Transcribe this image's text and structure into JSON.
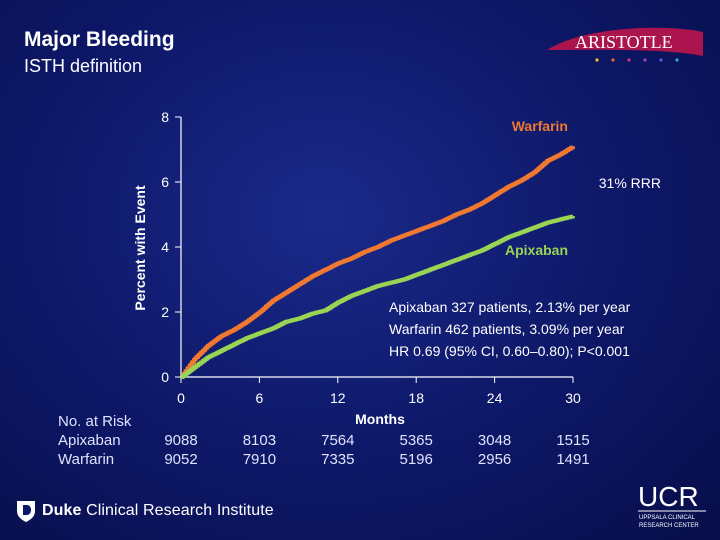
{
  "header": {
    "title": "Major Bleeding",
    "subtitle": "ISTH definition",
    "logo_text": "ARISTOTLE"
  },
  "chart_data": {
    "type": "line",
    "ylabel": "Percent with Event",
    "xlabel": "Months",
    "xlim": [
      0,
      30
    ],
    "ylim": [
      0,
      8
    ],
    "xticks": [
      0,
      6,
      12,
      18,
      24,
      30
    ],
    "yticks": [
      0,
      2,
      4,
      6,
      8
    ],
    "series": [
      {
        "name": "Warfarin",
        "color": "#f07830",
        "x": [
          0,
          1,
          2,
          3,
          4,
          5,
          6,
          7,
          8,
          9,
          10,
          11,
          12,
          13,
          14,
          15,
          16,
          17,
          18,
          19,
          20,
          21,
          22,
          23,
          24,
          25,
          26,
          27,
          28,
          29,
          30
        ],
        "y": [
          0,
          0.55,
          0.95,
          1.25,
          1.45,
          1.7,
          2.0,
          2.35,
          2.6,
          2.85,
          3.1,
          3.3,
          3.5,
          3.65,
          3.85,
          4.0,
          4.2,
          4.35,
          4.5,
          4.65,
          4.8,
          5.0,
          5.15,
          5.35,
          5.6,
          5.85,
          6.05,
          6.3,
          6.65,
          6.85,
          7.1
        ]
      },
      {
        "name": "Apixaban",
        "color": "#99d454",
        "x": [
          0,
          1,
          2,
          3,
          4,
          5,
          6,
          7,
          8,
          9,
          10,
          11,
          12,
          13,
          14,
          15,
          16,
          17,
          18,
          19,
          20,
          21,
          22,
          23,
          24,
          25,
          26,
          27,
          28,
          29,
          30
        ],
        "y": [
          0,
          0.3,
          0.6,
          0.8,
          1.0,
          1.2,
          1.35,
          1.5,
          1.7,
          1.8,
          1.95,
          2.05,
          2.3,
          2.5,
          2.65,
          2.8,
          2.9,
          3.0,
          3.15,
          3.3,
          3.45,
          3.6,
          3.75,
          3.9,
          4.1,
          4.3,
          4.45,
          4.6,
          4.75,
          4.85,
          4.95
        ]
      }
    ],
    "annotations": {
      "rrr": "31% RRR",
      "stat_apixaban": "Apixaban  327 patients, 2.13% per year",
      "stat_warfarin": "Warfarin   462 patients, 3.09% per year",
      "stat_hr": "HR 0.69 (95% CI, 0.60–0.80); P<0.001"
    },
    "risk_table": {
      "header": "No. at Risk",
      "rows": [
        {
          "label": "Apixaban",
          "values": [
            "9088",
            "8103",
            "7564",
            "5365",
            "3048",
            "1515"
          ]
        },
        {
          "label": "Warfarin",
          "values": [
            "9052",
            "7910",
            "7335",
            "5196",
            "2956",
            "1491"
          ]
        }
      ]
    }
  },
  "footer": {
    "duke_brand": "Duke",
    "duke_rest": "Clinical Research Institute",
    "ucr_main": "UCR",
    "ucr_line1": "UPPSALA CLINICAL",
    "ucr_line2": "RESEARCH CENTER"
  }
}
